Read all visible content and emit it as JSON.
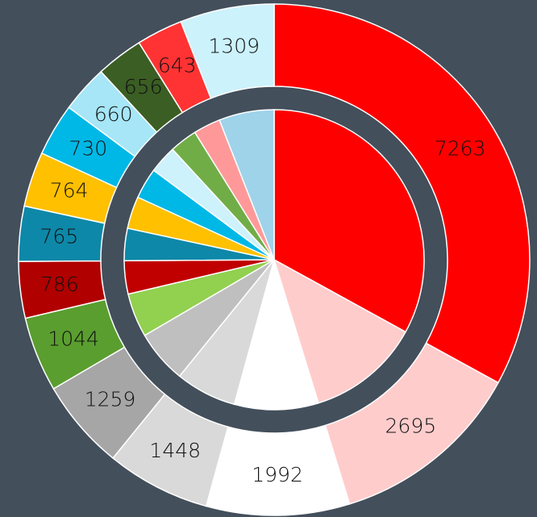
{
  "chart_data": {
    "type": "donut",
    "values": [
      7263,
      2695,
      1992,
      1448,
      1259,
      1044,
      786,
      765,
      764,
      730,
      660,
      656,
      643,
      1309
    ],
    "colors": [
      "#ff0000",
      "#ffcccc",
      "#ffffff",
      "#d9d9d9",
      "#a6a6a6",
      "#5a9e2f",
      "#b00000",
      "#0e88a8",
      "#ffc000",
      "#00b8e6",
      "#a6e6f7",
      "#3b5e24",
      "#ff3333",
      "#ccf2fc"
    ],
    "inner_colors": [
      "#ff0000",
      "#ffcccc",
      "#ffffff",
      "#d9d9d9",
      "#bfbfbf",
      "#92d050",
      "#c00000",
      "#0e88a8",
      "#ffc000",
      "#00b8e6",
      "#cdf2fb",
      "#70ad47",
      "#ff9999",
      "#9fd3ea"
    ]
  }
}
